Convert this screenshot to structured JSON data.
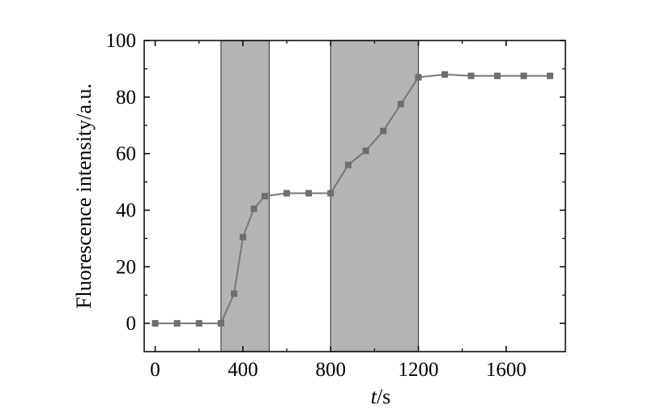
{
  "chart_data": {
    "type": "line",
    "xlabel_var": "t",
    "xlabel_unit": "/s",
    "ylabel": "Fluorescence intensity/a.u.",
    "xlim": [
      -50,
      1870
    ],
    "ylim": [
      -10,
      100
    ],
    "xticks": [
      "0",
      "400",
      "800",
      "1200",
      "1600"
    ],
    "yticks": [
      "0",
      "20",
      "40",
      "60",
      "80",
      "100"
    ],
    "shaded_regions": [
      [
        300,
        520
      ],
      [
        800,
        1200
      ]
    ],
    "colors": {
      "line": "#777777",
      "marker": "#6e6e6e",
      "shade": "#b4b4b4"
    },
    "series": [
      {
        "x": [
          0,
          100,
          200,
          300,
          360,
          400,
          450,
          500,
          600,
          700,
          800,
          880,
          960,
          1040,
          1120,
          1200,
          1320,
          1440,
          1560,
          1680,
          1800
        ],
        "y": [
          0,
          0,
          0,
          0,
          10.5,
          30.5,
          40.5,
          45,
          46,
          46,
          46,
          56,
          61,
          68,
          77.5,
          87,
          88,
          87.5,
          87.5,
          87.5,
          87.5
        ]
      }
    ]
  }
}
